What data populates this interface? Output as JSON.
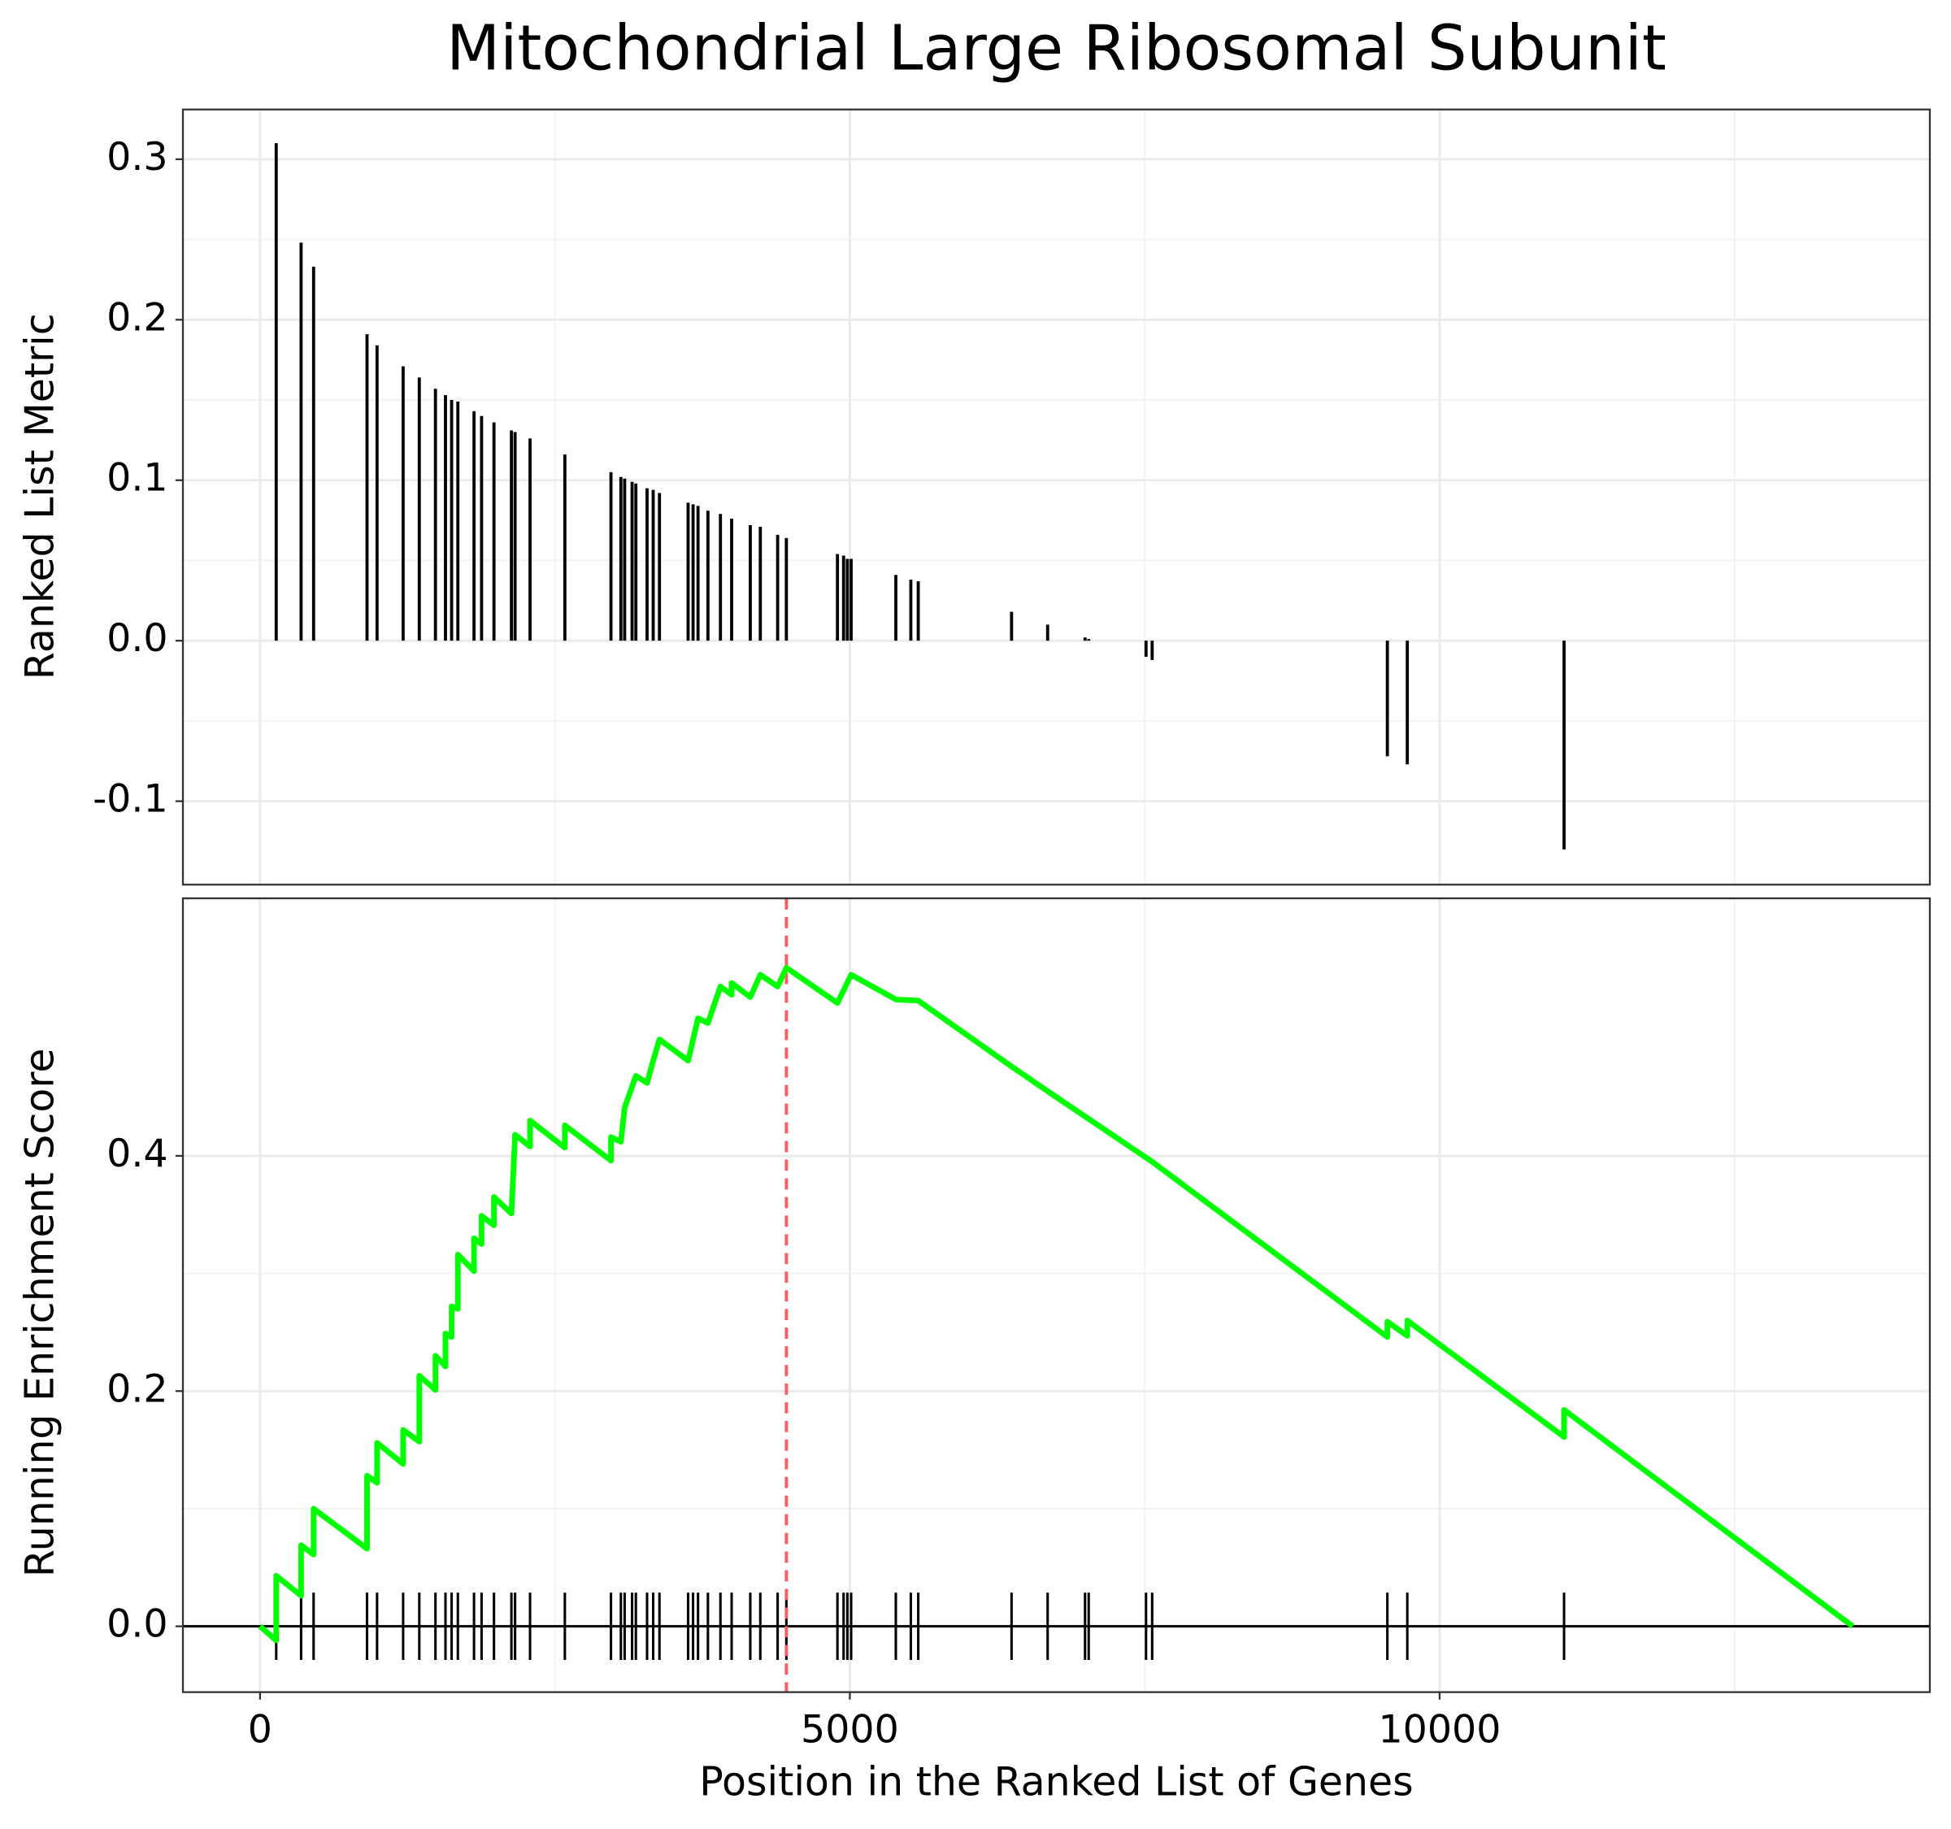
{
  "chart_data": [
    {
      "type": "stem",
      "title": "Mitochondrial Large Ribosomal Subunit",
      "ylabel": "Ranked List Metric",
      "x": [
        137,
        348,
        454,
        907,
        992,
        1213,
        1350,
        1487,
        1572,
        1624,
        1677,
        1814,
        1878,
        1983,
        2131,
        2162,
        2289,
        2584,
        2975,
        3059,
        3091,
        3154,
        3186,
        3281,
        3333,
        3386,
        3629,
        3671,
        3713,
        3797,
        3903,
        3998,
        4156,
        4241,
        4388,
        4462,
        4895,
        4947,
        4979,
        5011,
        5390,
        5517,
        5580,
        6371,
        6677,
        6994,
        7025,
        7511,
        7563,
        9557,
        9726,
        11055
      ],
      "values": [
        0.31,
        0.248,
        0.233,
        0.191,
        0.184,
        0.171,
        0.164,
        0.157,
        0.153,
        0.15,
        0.149,
        0.143,
        0.14,
        0.136,
        0.131,
        0.13,
        0.126,
        0.116,
        0.105,
        0.102,
        0.101,
        0.099,
        0.098,
        0.095,
        0.094,
        0.092,
        0.086,
        0.085,
        0.084,
        0.081,
        0.079,
        0.076,
        0.072,
        0.071,
        0.066,
        0.064,
        0.054,
        0.053,
        0.051,
        0.051,
        0.041,
        0.038,
        0.037,
        0.018,
        0.01,
        0.002,
        0.001,
        -0.01,
        -0.012,
        -0.072,
        -0.077,
        -0.13
      ],
      "color": "#000000",
      "xlim": [
        -654,
        14156
      ],
      "ylim": [
        -0.152,
        0.331
      ],
      "yticks": [
        -0.1,
        {
          "value": 0,
          "label": "0.0"
        },
        0.1,
        0.2,
        0.3
      ],
      "grid": true
    },
    {
      "type": "line",
      "ylabel": "Running Enrichment Score",
      "xlabel": "Position in the Ranked List of Genes",
      "x": [
        0,
        137,
        137,
        348,
        348,
        454,
        454,
        907,
        907,
        992,
        992,
        1213,
        1213,
        1350,
        1350,
        1487,
        1487,
        1572,
        1572,
        1624,
        1624,
        1677,
        1677,
        1814,
        1814,
        1878,
        1878,
        1983,
        1983,
        2131,
        2162,
        2289,
        2289,
        2584,
        2584,
        2975,
        2975,
        3059,
        3091,
        3186,
        3281,
        3333,
        3386,
        3629,
        3713,
        3797,
        3903,
        3998,
        3998,
        4156,
        4241,
        4388,
        4462,
        4895,
        5011,
        5390,
        5580,
        6371,
        6677,
        7563,
        9557,
        9557,
        9726,
        9726,
        11055,
        11055,
        13502
      ],
      "values": [
        0,
        -0.012,
        0.043,
        0.026,
        0.069,
        0.061,
        0.1,
        0.066,
        0.128,
        0.122,
        0.156,
        0.138,
        0.167,
        0.157,
        0.213,
        0.201,
        0.23,
        0.221,
        0.249,
        0.246,
        0.272,
        0.27,
        0.316,
        0.302,
        0.33,
        0.325,
        0.349,
        0.341,
        0.365,
        0.351,
        0.418,
        0.408,
        0.43,
        0.407,
        0.426,
        0.396,
        0.416,
        0.412,
        0.441,
        0.468,
        0.462,
        0.481,
        0.499,
        0.481,
        0.517,
        0.513,
        0.544,
        0.537,
        0.547,
        0.535,
        0.554,
        0.544,
        0.56,
        0.53,
        0.554,
        0.533,
        0.532,
        0.476,
        0.455,
        0.395,
        0.246,
        0.259,
        0.247,
        0.26,
        0.161,
        0.184,
        0
      ],
      "color": "#00ff00",
      "xlim": [
        -654,
        14156
      ],
      "ylim": [
        -0.056,
        0.619
      ],
      "xticks": [
        0,
        5000,
        10000
      ],
      "yticks": [
        {
          "value": 0,
          "label": "0.0"
        },
        0.2,
        0.4
      ],
      "vline": 4462,
      "vline_color": "#ff5a5f",
      "hline": 0,
      "grid": true
    }
  ]
}
